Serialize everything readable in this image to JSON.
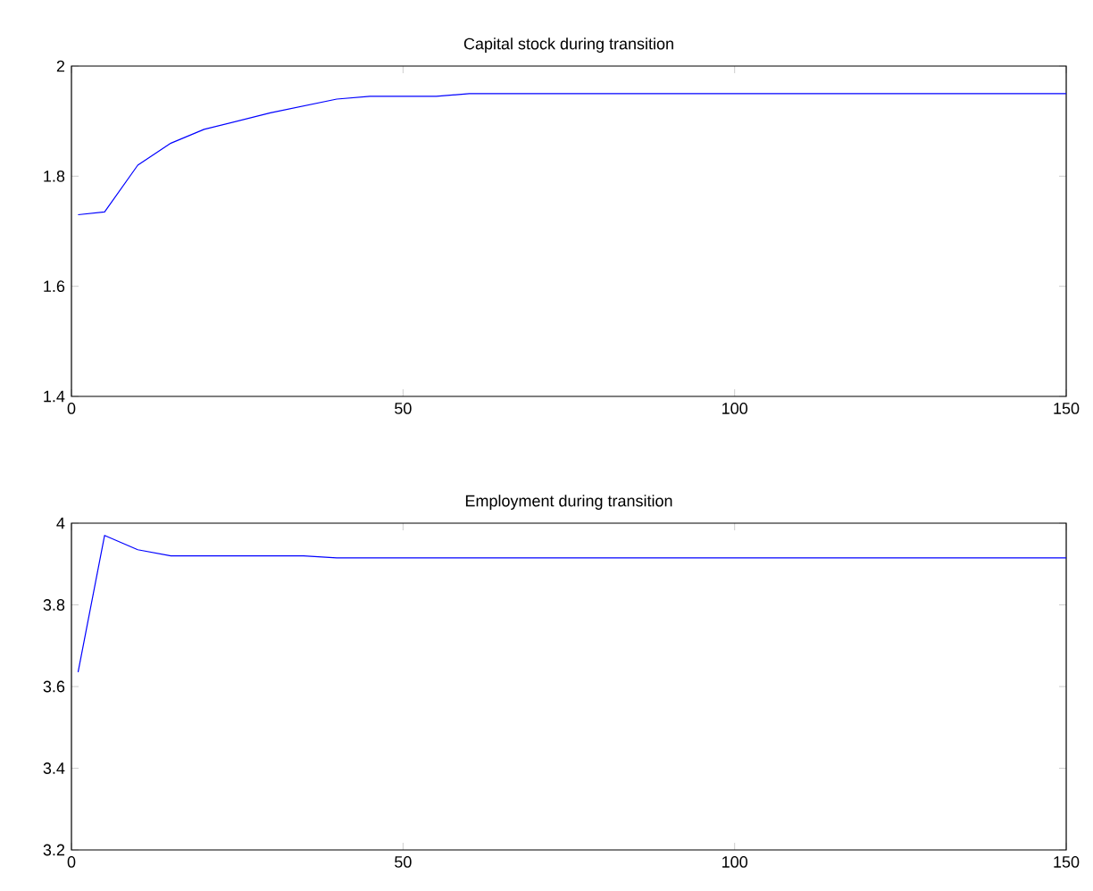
{
  "chart_data": [
    {
      "type": "line",
      "title": "Capital stock during transition",
      "x": [
        1,
        5,
        10,
        15,
        20,
        30,
        40,
        45,
        55,
        60,
        150
      ],
      "series": [
        {
          "color": "#0000ff",
          "values": [
            1.73,
            1.735,
            1.82,
            1.86,
            1.885,
            1.915,
            1.94,
            1.945,
            1.945,
            1.95,
            1.95
          ]
        }
      ],
      "xlim": [
        0,
        150
      ],
      "ylim": [
        1.4,
        2
      ],
      "xticks": [
        0,
        50,
        100,
        150
      ],
      "yticks": [
        1.4,
        1.6,
        1.8,
        2
      ],
      "line_style": "solid"
    },
    {
      "type": "line",
      "title": "Employment during transition",
      "x": [
        1,
        5,
        10,
        15,
        35,
        40,
        150
      ],
      "series": [
        {
          "color": "#0000ff",
          "values": [
            3.635,
            3.97,
            3.935,
            3.92,
            3.92,
            3.915,
            3.915
          ]
        }
      ],
      "xlim": [
        0,
        150
      ],
      "ylim": [
        3.2,
        4
      ],
      "xticks": [
        0,
        50,
        100,
        150
      ],
      "yticks": [
        3.2,
        3.4,
        3.6,
        3.8,
        4
      ],
      "line_style": "solid"
    }
  ]
}
